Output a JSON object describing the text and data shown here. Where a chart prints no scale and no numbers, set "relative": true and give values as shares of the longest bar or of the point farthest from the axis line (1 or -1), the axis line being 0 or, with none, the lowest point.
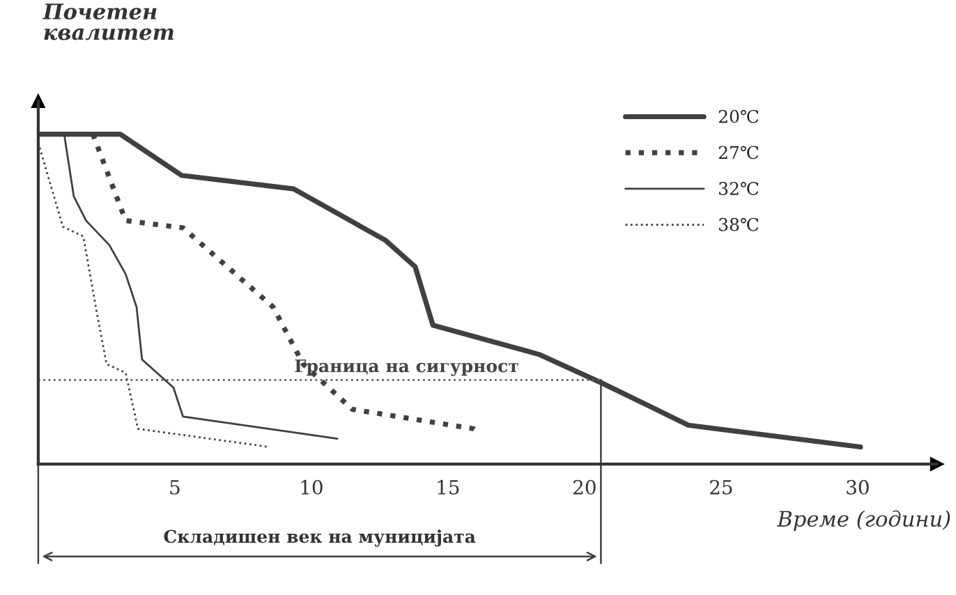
{
  "chart_data": {
    "type": "line",
    "relative": true,
    "ylabel": "Почетен\nквалитет",
    "xlabel": "Време (години)",
    "xlim": [
      0,
      32.9
    ],
    "xticks": [
      5,
      10,
      15,
      20,
      25,
      30
    ],
    "grid": false,
    "legend": "top right",
    "marker": "none",
    "series": [
      {
        "name": "20℃",
        "color": "#404040",
        "line_style": "solid",
        "x": [
          0,
          3,
          5.25,
          9.35,
          12.7,
          13.8,
          14.45,
          18.35,
          20.6,
          22.25,
          23.8,
          30.1
        ],
        "values": [
          1,
          1,
          0.875,
          0.834,
          0.679,
          0.598,
          0.421,
          0.332,
          0.247,
          0.181,
          0.118,
          0.052
        ]
      },
      {
        "name": "27℃",
        "color": "#404040",
        "line_style": "dotted",
        "x": [
          2,
          3.2,
          5.3,
          8.6,
          9.7,
          11.5,
          15.95,
          16.2
        ],
        "values": [
          1,
          0.738,
          0.716,
          0.476,
          0.303,
          0.166,
          0.107,
          0.092
        ]
      },
      {
        "name": "32℃",
        "color": "#404040",
        "line_style": "solid",
        "x": [
          0.95,
          1.3,
          1.75,
          2.6,
          3.2,
          3.6,
          3.8,
          4.95,
          5.3,
          10.95
        ],
        "values": [
          1,
          0.812,
          0.738,
          0.664,
          0.576,
          0.476,
          0.317,
          0.232,
          0.144,
          0.077
        ]
      },
      {
        "name": "38℃",
        "color": "#404040",
        "line_style": "dotted",
        "x": [
          0,
          0.9,
          1.65,
          2.1,
          2.5,
          3.2,
          3.65,
          8.45
        ],
        "values": [
          0.974,
          0.72,
          0.69,
          0.48,
          0.303,
          0.277,
          0.107,
          0.052
        ]
      }
    ],
    "ref_lines": [
      {
        "axis": "y",
        "value": 0.255,
        "label": "Граница на сигурност",
        "line_style": "dotted",
        "color": "#606060"
      },
      {
        "axis": "x",
        "value": 20.6,
        "line_style": "solid",
        "color": "#404040"
      }
    ],
    "annotations": [
      "Складишен век на муницијата"
    ]
  }
}
